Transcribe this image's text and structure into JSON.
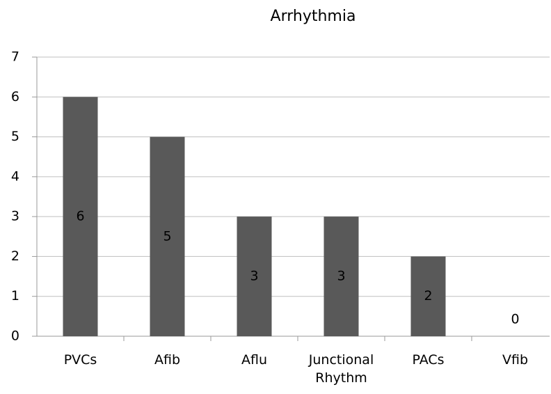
{
  "chart_data": {
    "type": "bar",
    "title": "Arrhythmia",
    "categories": [
      "PVCs",
      "Afib",
      "Aflu",
      "Junctional Rhythm",
      "PACs",
      "Vfib"
    ],
    "values": [
      6,
      5,
      3,
      3,
      2,
      0
    ],
    "color": "#595959",
    "ylim": [
      0,
      7
    ],
    "yticks": [
      0,
      1,
      2,
      3,
      4,
      5,
      6,
      7
    ],
    "grid": true
  }
}
